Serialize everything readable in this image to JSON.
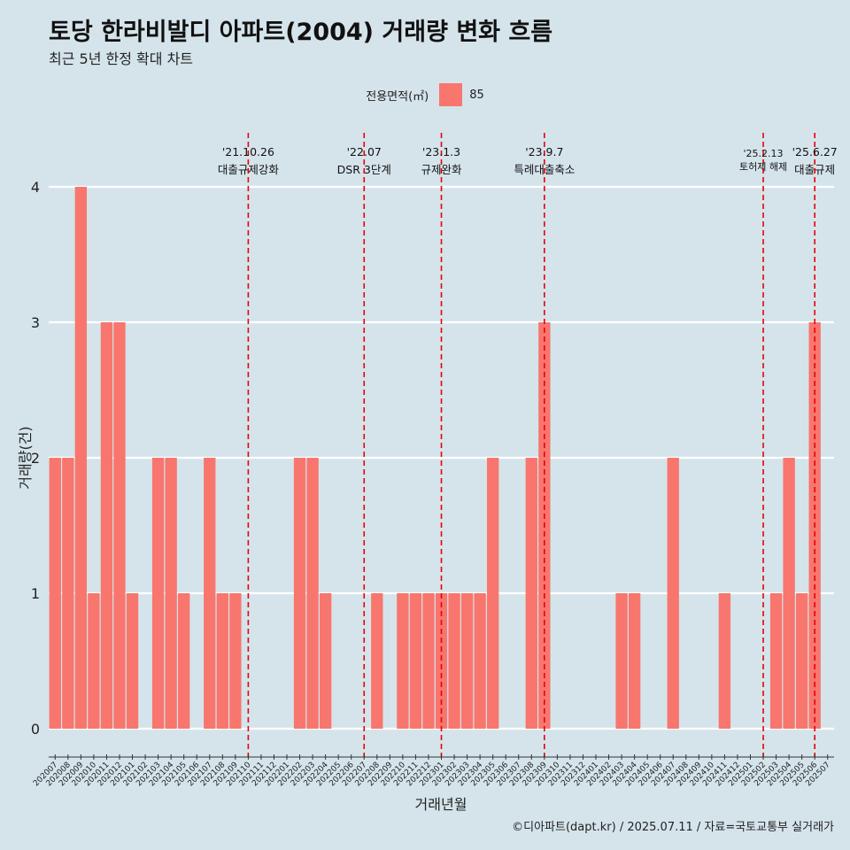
{
  "title": "토당 한라비발디 아파트(2004) 거래량 변화 흐름",
  "subtitle": "최근 5년 한정 확대 차트",
  "legend": {
    "title": "전용면적(㎡)",
    "items": [
      {
        "label": "85",
        "color": "#f8766d"
      }
    ]
  },
  "caption": "©디아파트(dapt.kr) / 2025.07.11 / 자료=국토교통부 실거래가",
  "colors": {
    "background": "#d5e4eb",
    "bar": "#f8766d",
    "event_line": "#e8000b",
    "grid": "#ffffff"
  },
  "chart_data": {
    "type": "bar",
    "xlabel": "거래년월",
    "ylabel": "거래량(건)",
    "ylim": [
      0,
      4
    ],
    "yticks": [
      0,
      1,
      2,
      3,
      4
    ],
    "grid": true,
    "legend_position": "top",
    "categories": [
      "202007",
      "202008",
      "202009",
      "202010",
      "202011",
      "202012",
      "202101",
      "202102",
      "202103",
      "202104",
      "202105",
      "202106",
      "202107",
      "202108",
      "202109",
      "202110",
      "202111",
      "202112",
      "202201",
      "202202",
      "202203",
      "202204",
      "202205",
      "202206",
      "202207",
      "202208",
      "202209",
      "202210",
      "202211",
      "202212",
      "202301",
      "202302",
      "202303",
      "202304",
      "202305",
      "202306",
      "202307",
      "202308",
      "202309",
      "202310",
      "202311",
      "202312",
      "202401",
      "202402",
      "202403",
      "202404",
      "202405",
      "202406",
      "202407",
      "202408",
      "202409",
      "202410",
      "202411",
      "202412",
      "202501",
      "202502",
      "202503",
      "202504",
      "202505",
      "202506",
      "202507"
    ],
    "series": [
      {
        "name": "85",
        "values": [
          2,
          2,
          4,
          1,
          3,
          3,
          1,
          0,
          2,
          2,
          1,
          0,
          2,
          1,
          1,
          0,
          0,
          0,
          0,
          2,
          2,
          1,
          0,
          0,
          0,
          1,
          0,
          1,
          1,
          1,
          1,
          1,
          1,
          1,
          2,
          0,
          0,
          2,
          3,
          0,
          0,
          0,
          0,
          0,
          1,
          1,
          0,
          0,
          2,
          0,
          0,
          0,
          1,
          0,
          0,
          0,
          1,
          2,
          1,
          3,
          0
        ]
      }
    ],
    "annotations": [
      {
        "x": "202110",
        "date": "'21.10.26",
        "text": "대출규제강화"
      },
      {
        "x": "202207",
        "date": "'22.07",
        "text": "DSR 3단계"
      },
      {
        "x": "202301",
        "date": "'23.1.3",
        "text": "규제완화"
      },
      {
        "x": "202309",
        "date": "'23.9.7",
        "text": "특례대출축소"
      },
      {
        "x": "202502",
        "date": "'25.2.13",
        "text": "토허제 해제"
      },
      {
        "x": "202506",
        "date": "'25.6.27",
        "text": "대출규제"
      }
    ]
  }
}
